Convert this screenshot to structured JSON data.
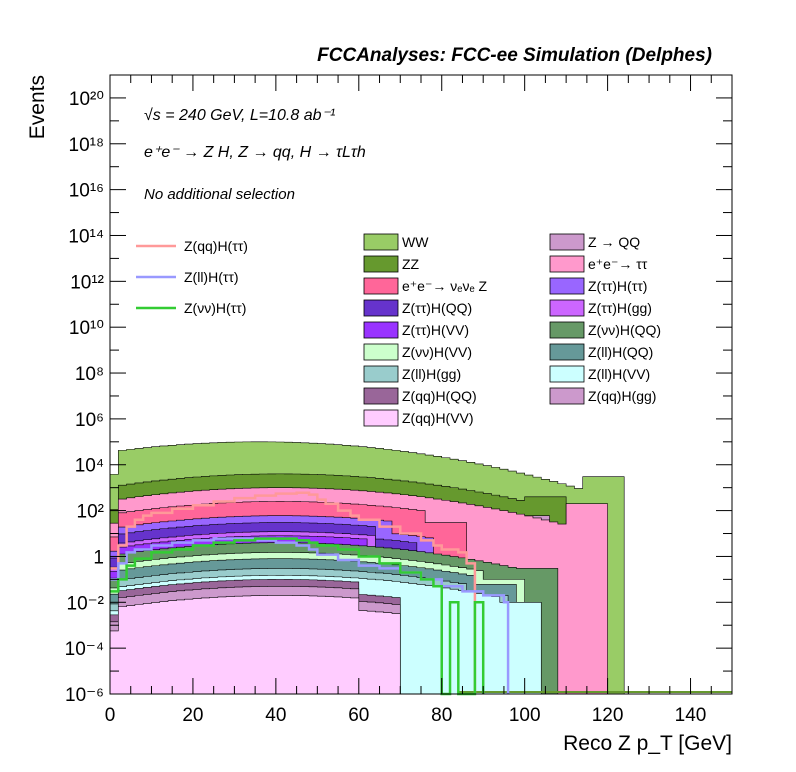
{
  "chart_data": {
    "type": "histogram-stack",
    "header": "FCCAnalyses: FCC-ee Simulation (Delphes)",
    "xlabel": "Reco Z p_T [GeV]",
    "ylabel": "Events",
    "xlim": [
      0,
      150
    ],
    "ylim": [
      1e-06,
      1e+21
    ],
    "yscale": "log",
    "xticks": [
      0,
      20,
      40,
      60,
      80,
      100,
      120,
      140
    ],
    "yticks": [
      {
        "value": 1e-06,
        "label": "10⁻⁶"
      },
      {
        "value": 0.0001,
        "label": "10⁻⁴"
      },
      {
        "value": 0.01,
        "label": "10⁻²"
      },
      {
        "value": 1,
        "label": "1"
      },
      {
        "value": 100.0,
        "label": "10²"
      },
      {
        "value": 10000.0,
        "label": "10⁴"
      },
      {
        "value": 1000000.0,
        "label": "10⁶"
      },
      {
        "value": 100000000.0,
        "label": "10⁸"
      },
      {
        "value": 10000000000.0,
        "label": "10¹⁰"
      },
      {
        "value": 1000000000000.0,
        "label": "10¹²"
      },
      {
        "value": 100000000000000.0,
        "label": "10¹⁴"
      },
      {
        "value": 1e+16,
        "label": "10¹⁶"
      },
      {
        "value": 1e+18,
        "label": "10¹⁸"
      },
      {
        "value": 1e+20,
        "label": "10²⁰"
      }
    ],
    "annotations": [
      "√s = 240 GeV, L=10.8 ab⁻¹",
      "e⁺e⁻ → Z H, Z → qq, H → τLτh",
      "No additional selection"
    ],
    "stacked_series": [
      {
        "name": "WW",
        "color": "#99cc66",
        "xmax": 124,
        "peak_x": 35,
        "peak": 100000.0,
        "edge": 3000
      },
      {
        "name": "ZZ",
        "color": "#66992e",
        "xmax": 110,
        "peak_x": 40,
        "peak": 4000,
        "edge": 400
      },
      {
        "name": "Z → QQ",
        "color": "#cc99cc",
        "xmax": 106,
        "peak_x": 40,
        "peak": 800,
        "edge": 60
      },
      {
        "name": "e⁺e⁻→ ττ",
        "color": "#ff99cc",
        "xmax": 120,
        "peak_x": 40,
        "peak": 1000,
        "edge": 200
      },
      {
        "name": "e⁺e⁻→ νₑνₑ Z",
        "color": "#ff6699",
        "xmax": 86,
        "peak_x": 40,
        "peak": 250,
        "edge": 30
      },
      {
        "name": "Z(ττ)H(ττ)",
        "color": "#9966ff",
        "xmax": 78,
        "peak_x": 40,
        "peak": 60,
        "edge": 5
      },
      {
        "name": "Z(ττ)H(QQ)",
        "color": "#6633cc",
        "xmax": 74,
        "peak_x": 40,
        "peak": 30,
        "edge": 2
      },
      {
        "name": "Z(ττ)H(gg)",
        "color": "#cc66ff",
        "xmax": 74,
        "peak_x": 40,
        "peak": 12,
        "edge": 1
      },
      {
        "name": "Z(ττ)H(VV)",
        "color": "#9933ff",
        "xmax": 72,
        "peak_x": 40,
        "peak": 8,
        "edge": 0.5
      },
      {
        "name": "Z(νν)H(QQ)",
        "color": "#669966",
        "xmax": 108,
        "peak_x": 40,
        "peak": 4,
        "edge": 0.3
      },
      {
        "name": "Z(νν)H(VV)",
        "color": "#ccffcc",
        "xmax": 100,
        "peak_x": 40,
        "peak": 1.5,
        "edge": 0.1
      },
      {
        "name": "Z(ll)H(QQ)",
        "color": "#669999",
        "xmax": 98,
        "peak_x": 40,
        "peak": 0.8,
        "edge": 0.06
      },
      {
        "name": "Z(ll)H(gg)",
        "color": "#99cccc",
        "xmax": 96,
        "peak_x": 40,
        "peak": 0.3,
        "edge": 0.02
      },
      {
        "name": "Z(ll)H(VV)",
        "color": "#ccffff",
        "xmax": 104,
        "peak_x": 40,
        "peak": 0.15,
        "edge": 0.01
      },
      {
        "name": "Z(qq)H(QQ)",
        "color": "#996699",
        "xmax": 70,
        "peak_x": 40,
        "peak": 0.1,
        "edge": 0.003
      },
      {
        "name": "Z(qq)H(gg)",
        "color": "#cc99cc",
        "xmax": 70,
        "peak_x": 40,
        "peak": 0.05,
        "edge": 0.002
      },
      {
        "name": "Z(qq)H(VV)",
        "color": "#ffccff",
        "xmax": 70,
        "peak_x": 40,
        "peak": 0.02,
        "edge": 0.001
      }
    ],
    "signal_series": [
      {
        "name": "Z(qq)H(ττ)",
        "color": "#ff9999",
        "points": [
          [
            0,
            0.3
          ],
          [
            2,
            3
          ],
          [
            4,
            20
          ],
          [
            6,
            40
          ],
          [
            8,
            60
          ],
          [
            10,
            80
          ],
          [
            15,
            120
          ],
          [
            20,
            170
          ],
          [
            25,
            250
          ],
          [
            30,
            350
          ],
          [
            35,
            450
          ],
          [
            40,
            550
          ],
          [
            45,
            600
          ],
          [
            48,
            500
          ],
          [
            50,
            300
          ],
          [
            52,
            200
          ],
          [
            55,
            100
          ],
          [
            58,
            60
          ],
          [
            60,
            40
          ],
          [
            65,
            20
          ],
          [
            70,
            10
          ],
          [
            75,
            5
          ],
          [
            78,
            3
          ],
          [
            80,
            2
          ],
          [
            84,
            1.5
          ],
          [
            86,
            0.5
          ],
          [
            88,
            1e-06
          ]
        ]
      },
      {
        "name": "Z(ll)H(ττ)",
        "color": "#9999ff",
        "points": [
          [
            0,
            0.1
          ],
          [
            2,
            0.5
          ],
          [
            4,
            1.5
          ],
          [
            6,
            2
          ],
          [
            10,
            3
          ],
          [
            15,
            4
          ],
          [
            20,
            5
          ],
          [
            25,
            6
          ],
          [
            30,
            6
          ],
          [
            35,
            5
          ],
          [
            40,
            4
          ],
          [
            45,
            3
          ],
          [
            48,
            2
          ],
          [
            50,
            1.2
          ],
          [
            55,
            0.7
          ],
          [
            60,
            0.4
          ],
          [
            65,
            0.3
          ],
          [
            70,
            0.2
          ],
          [
            75,
            0.1
          ],
          [
            80,
            0.05
          ],
          [
            85,
            0.03
          ],
          [
            90,
            0.02
          ],
          [
            95,
            0.01
          ],
          [
            96,
            1e-06
          ]
        ]
      },
      {
        "name": "Z(νν)H(ττ)",
        "color": "#33cc33",
        "points": [
          [
            0,
            0.03
          ],
          [
            2,
            0.1
          ],
          [
            4,
            0.4
          ],
          [
            6,
            0.8
          ],
          [
            10,
            1.5
          ],
          [
            15,
            2
          ],
          [
            20,
            3
          ],
          [
            25,
            4
          ],
          [
            30,
            5
          ],
          [
            35,
            6
          ],
          [
            40,
            6
          ],
          [
            45,
            5
          ],
          [
            48,
            4
          ],
          [
            50,
            3
          ],
          [
            55,
            2
          ],
          [
            60,
            1
          ],
          [
            65,
            0.5
          ],
          [
            70,
            0.2
          ],
          [
            75,
            0.1
          ],
          [
            78,
            0.05
          ],
          [
            80,
            1e-06
          ],
          [
            82,
            0.01
          ],
          [
            84,
            1e-06
          ],
          [
            86,
            1e-06
          ],
          [
            88,
            0.01
          ],
          [
            90,
            1e-06
          ]
        ]
      }
    ],
    "legend_left": [
      "Z(qq)H(ττ)",
      "Z(ll)H(ττ)",
      "Z(νν)H(ττ)"
    ],
    "legend_mid": [
      "WW",
      "ZZ",
      "e⁺e⁻→ νₑνₑ Z",
      "Z(ττ)H(QQ)",
      "Z(ττ)H(VV)",
      "Z(νν)H(VV)",
      "Z(ll)H(gg)",
      "Z(qq)H(QQ)",
      "Z(qq)H(VV)"
    ],
    "legend_right": [
      "Z → QQ",
      "e⁺e⁻→ ττ",
      "Z(ττ)H(ττ)",
      "Z(ττ)H(gg)",
      "Z(νν)H(QQ)",
      "Z(ll)H(QQ)",
      "Z(ll)H(VV)",
      "Z(qq)H(gg)"
    ]
  }
}
